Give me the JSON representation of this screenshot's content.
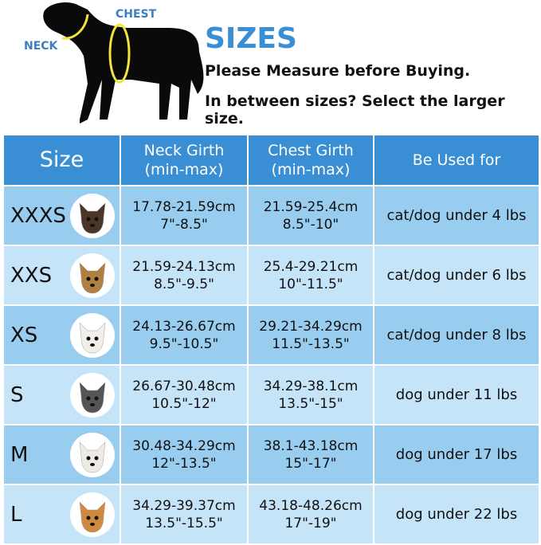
{
  "header": {
    "neck_label": "NECK",
    "chest_label": "CHEST",
    "title": "SIZES",
    "line1": "Please Measure before Buying.",
    "line2": "In between sizes? Select the larger size."
  },
  "table": {
    "columns": [
      "Size",
      "Neck Girth\n(min-max)",
      "Chest Girth\n(min-max)",
      "Be Used for"
    ],
    "col_neck": [
      "Neck Girth",
      "(min-max)"
    ],
    "col_chest": [
      "Chest Girth",
      "(min-max)"
    ],
    "rows": [
      {
        "size": "XXXS",
        "neck_cm": "17.78-21.59cm",
        "neck_in": "7\"-8.5\"",
        "chest_cm": "21.59-25.4cm",
        "chest_in": "8.5\"-10\"",
        "use": "cat/dog under 4 lbs",
        "pet": "chihuahua-photo",
        "pet_color": "#4a3528"
      },
      {
        "size": "XXS",
        "neck_cm": "21.59-24.13cm",
        "neck_in": "8.5\"-9.5\"",
        "chest_cm": "25.4-29.21cm",
        "chest_in": "10\"-11.5\"",
        "use": "cat/dog under 6 lbs",
        "pet": "yorkie-photo",
        "pet_color": "#b08040"
      },
      {
        "size": "XS",
        "neck_cm": "24.13-26.67cm",
        "neck_in": "9.5\"-10.5\"",
        "chest_cm": "29.21-34.29cm",
        "chest_in": "11.5\"-13.5\"",
        "use": "cat/dog under 8 lbs",
        "pet": "maltese-photo",
        "pet_color": "#f2efea"
      },
      {
        "size": "S",
        "neck_cm": "26.67-30.48cm",
        "neck_in": "10.5\"-12\"",
        "chest_cm": "34.29-38.1cm",
        "chest_in": "13.5\"-15\"",
        "use": "dog under 11 lbs",
        "pet": "schnauzer-photo",
        "pet_color": "#555"
      },
      {
        "size": "M",
        "neck_cm": "30.48-34.29cm",
        "neck_in": "12\"-13.5\"",
        "chest_cm": "38.1-43.18cm",
        "chest_in": "15\"-17\"",
        "use": "dog under 17 lbs",
        "pet": "bichon-photo",
        "pet_color": "#eeeae4"
      },
      {
        "size": "L",
        "neck_cm": "34.29-39.37cm",
        "neck_in": "13.5\"-15.5\"",
        "chest_cm": "43.18-48.26cm",
        "chest_in": "17\"-19\"",
        "use": "dog under 22 lbs",
        "pet": "corgi-photo",
        "pet_color": "#d08a40"
      }
    ]
  },
  "colors": {
    "header": "#3a8fd4",
    "row_dark": "#99cdf0",
    "row_light": "#c6e4f8",
    "accent_text": "#3b7fc0",
    "measure_ring": "#f2e43a"
  }
}
